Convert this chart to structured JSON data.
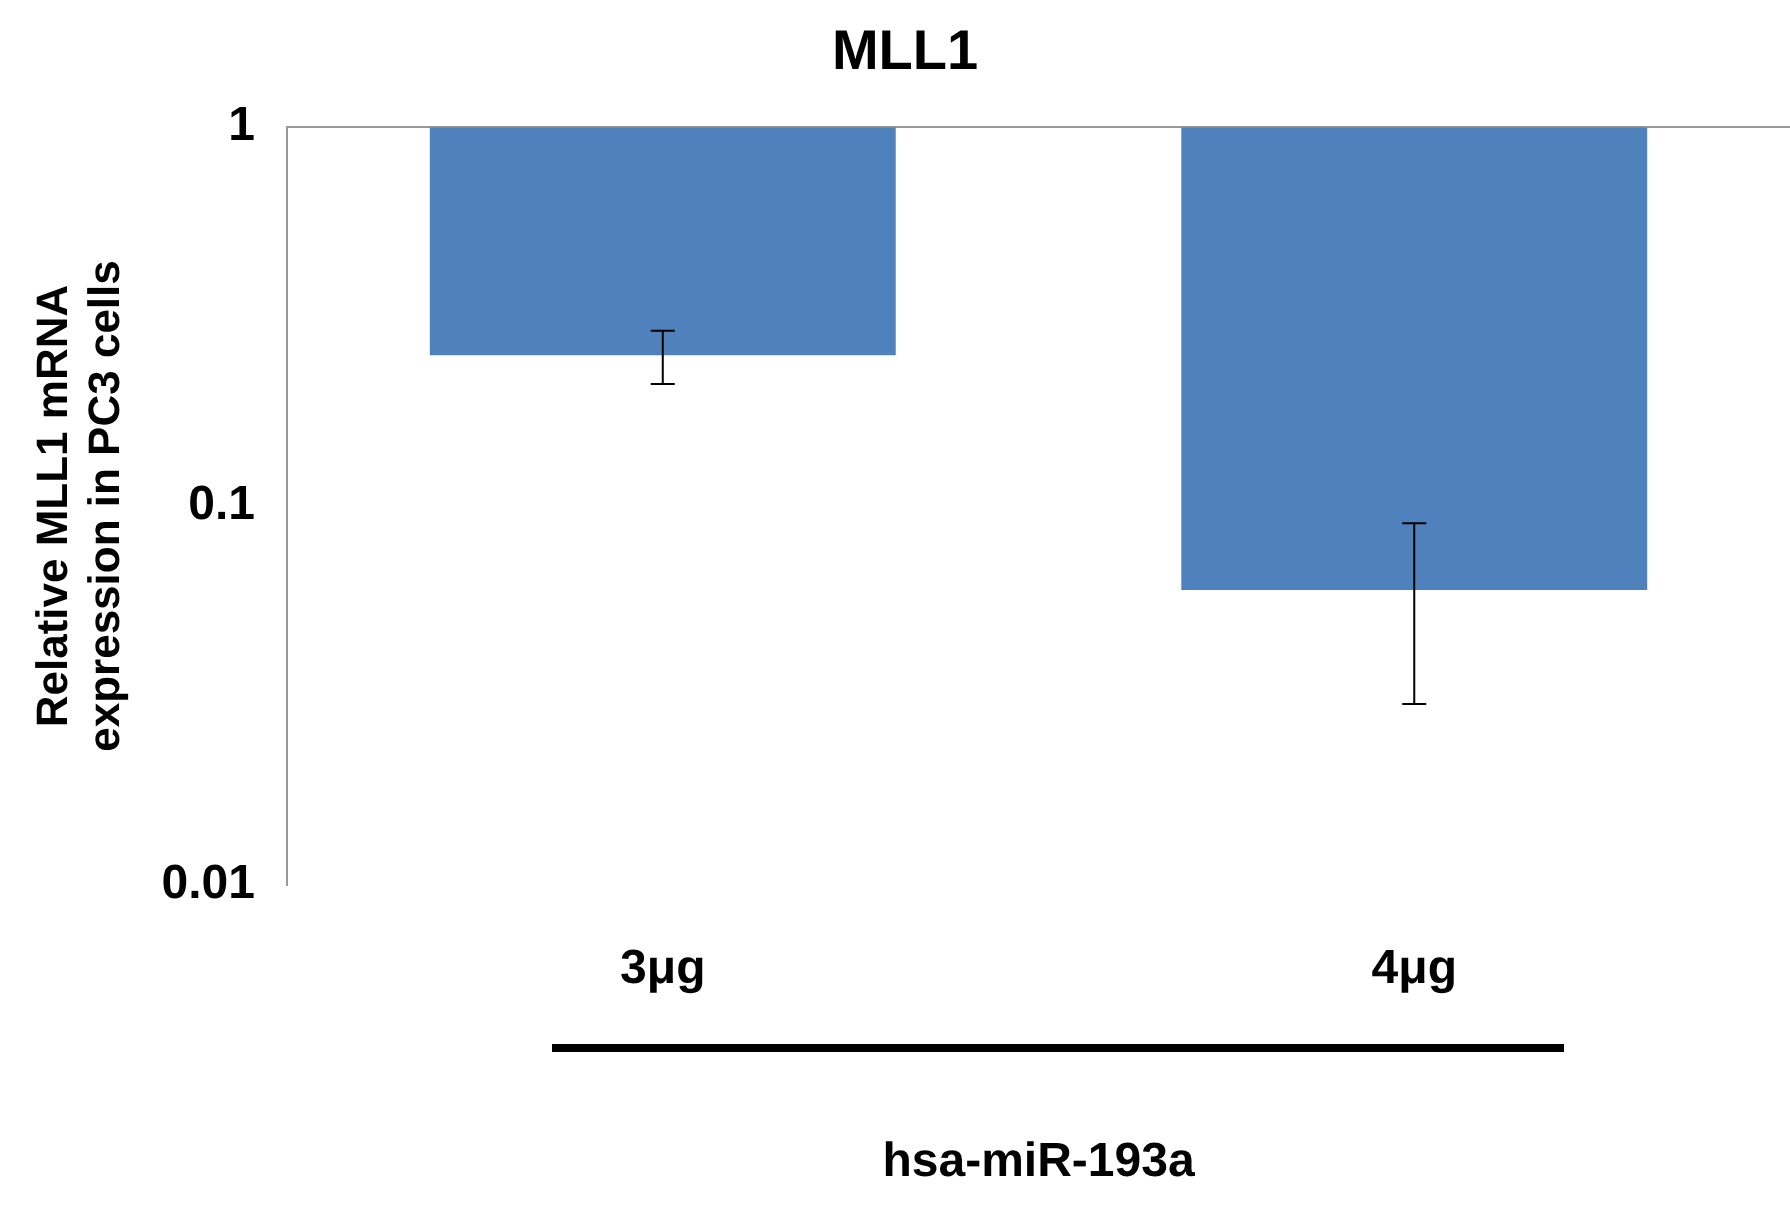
{
  "chart_data": {
    "type": "bar",
    "title": "MLL1",
    "xlabel": "hsa-miR-193a",
    "ylabel": "Relative MLL1 mRNA expression in PC3 cells",
    "categories": [
      "3μg",
      "4μg"
    ],
    "base": [
      1,
      1
    ],
    "values": [
      -0.75,
      -0.94
    ],
    "errors": [
      [
        0.21,
        0.29
      ],
      [
        0.03,
        0.09
      ]
    ],
    "color": "#4f81bd",
    "log": true,
    "ylim": [
      0.01,
      1
    ],
    "yticks": [
      0.01,
      0.1,
      1
    ],
    "grid": false,
    "legend": false
  }
}
